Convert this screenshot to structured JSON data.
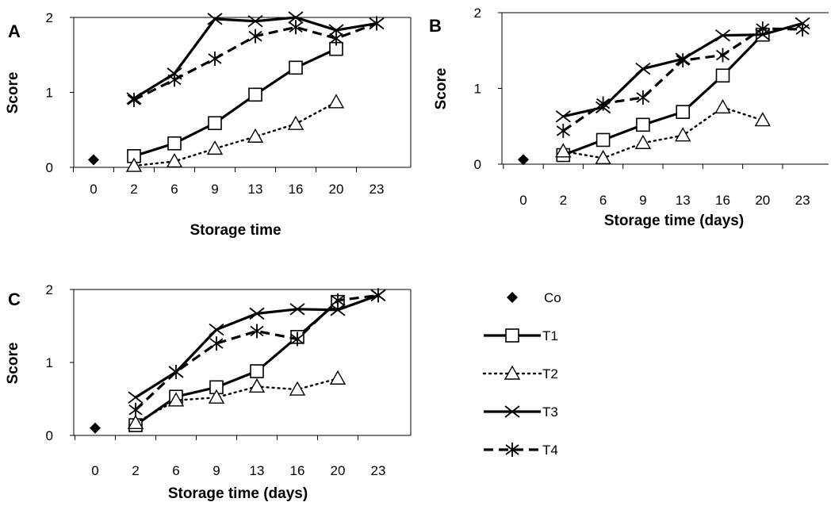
{
  "chart_data": [
    {
      "type": "line",
      "panel": "A",
      "xlabel": "Storage time",
      "ylabel": "Score",
      "categories": [
        "0",
        "2",
        "6",
        "9",
        "13",
        "16",
        "20",
        "23"
      ],
      "ylim": [
        0,
        2
      ],
      "yticks": [
        "0",
        "1",
        "2"
      ],
      "grid": false,
      "series": [
        {
          "name": "Co",
          "values": [
            0.1,
            null,
            null,
            null,
            null,
            null,
            null,
            null
          ]
        },
        {
          "name": "T1",
          "values": [
            null,
            0.15,
            0.32,
            0.59,
            0.97,
            1.33,
            1.58,
            null
          ]
        },
        {
          "name": "T2",
          "values": [
            null,
            0.02,
            0.08,
            0.25,
            0.41,
            0.58,
            0.87,
            null
          ]
        },
        {
          "name": "T3",
          "values": [
            null,
            0.92,
            1.25,
            1.98,
            1.95,
            2.0,
            1.83,
            1.92
          ]
        },
        {
          "name": "T4",
          "values": [
            null,
            0.9,
            1.17,
            1.45,
            1.75,
            1.87,
            1.72,
            1.92
          ]
        }
      ]
    },
    {
      "type": "line",
      "panel": "B",
      "xlabel": "Storage time (days)",
      "ylabel": "Score",
      "categories": [
        "0",
        "2",
        "6",
        "9",
        "13",
        "16",
        "20",
        "23"
      ],
      "ylim": [
        0,
        2
      ],
      "yticks": [
        "0",
        "1",
        "2"
      ],
      "grid": false,
      "series": [
        {
          "name": "Co",
          "values": [
            0.06,
            null,
            null,
            null,
            null,
            null,
            null,
            null
          ]
        },
        {
          "name": "T1",
          "values": [
            null,
            0.12,
            0.32,
            0.52,
            0.69,
            1.17,
            1.71,
            null
          ]
        },
        {
          "name": "T2",
          "values": [
            null,
            0.17,
            0.08,
            0.28,
            0.38,
            0.75,
            0.58,
            null
          ]
        },
        {
          "name": "T3",
          "values": [
            null,
            0.63,
            0.75,
            1.26,
            1.39,
            1.7,
            1.71,
            1.86
          ]
        },
        {
          "name": "T4",
          "values": [
            null,
            0.44,
            0.8,
            0.88,
            1.37,
            1.44,
            1.79,
            1.78
          ]
        }
      ]
    },
    {
      "type": "line",
      "panel": "C",
      "xlabel": "Storage time (days)",
      "ylabel": "Score",
      "categories": [
        "0",
        "2",
        "6",
        "9",
        "13",
        "16",
        "20",
        "23"
      ],
      "ylim": [
        0,
        2
      ],
      "yticks": [
        "0",
        "1",
        "2"
      ],
      "grid": false,
      "legend_position": "right",
      "series": [
        {
          "name": "Co",
          "values": [
            0.1,
            null,
            null,
            null,
            null,
            null,
            null,
            null
          ]
        },
        {
          "name": "T1",
          "values": [
            null,
            0.14,
            0.53,
            0.66,
            0.88,
            1.35,
            1.83,
            null
          ]
        },
        {
          "name": "T2",
          "values": [
            null,
            0.17,
            0.48,
            0.52,
            0.67,
            0.63,
            0.78,
            null
          ]
        },
        {
          "name": "T3",
          "values": [
            null,
            0.52,
            0.87,
            1.45,
            1.67,
            1.73,
            1.72,
            1.92
          ]
        },
        {
          "name": "T4",
          "values": [
            null,
            0.35,
            0.87,
            1.26,
            1.43,
            1.32,
            1.85,
            1.92
          ]
        }
      ]
    }
  ],
  "legend": {
    "items": [
      {
        "label": "Co",
        "marker": "diamond-filled",
        "line": "none"
      },
      {
        "label": "T1",
        "marker": "square-open",
        "line": "solid"
      },
      {
        "label": "T2",
        "marker": "triangle-open",
        "line": "dotted"
      },
      {
        "label": "T3",
        "marker": "x",
        "line": "solid"
      },
      {
        "label": "T4",
        "marker": "asterisk",
        "line": "dashed"
      }
    ]
  },
  "colors": {
    "ink": "#000000",
    "background": "#ffffff"
  }
}
